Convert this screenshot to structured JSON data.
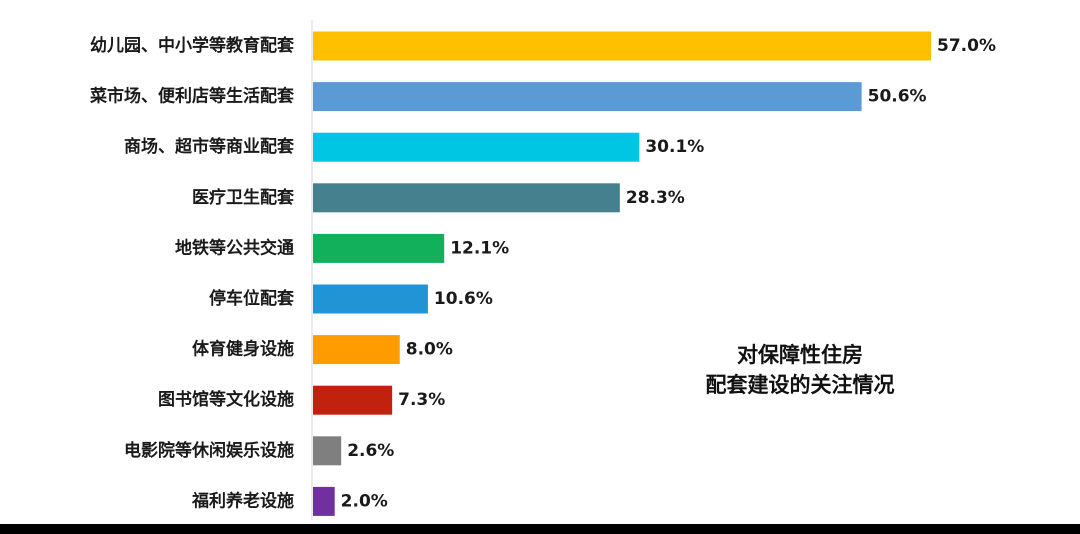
{
  "chart_data": {
    "type": "bar",
    "orientation": "horizontal",
    "title_lines": [
      "对保障性住房",
      "配套建设的关注情况"
    ],
    "categories": [
      "幼儿园、中小学等教育配套",
      "菜市场、便利店等生活配套",
      "商场、超市等商业配套",
      "医疗卫生配套",
      "地铁等公共交通",
      "停车位配套",
      "体育健身设施",
      "图书馆等文化设施",
      "电影院等休闲娱乐设施",
      "福利养老设施"
    ],
    "values": [
      57.0,
      50.6,
      30.1,
      28.3,
      12.1,
      10.6,
      8.0,
      7.3,
      2.6,
      2.0
    ],
    "value_labels": [
      "57.0%",
      "50.6%",
      "30.1%",
      "28.3%",
      "12.1%",
      "10.6%",
      "8.0%",
      "7.3%",
      "2.6%",
      "2.0%"
    ],
    "colors": [
      "#FFC000",
      "#5B9BD5",
      "#00C5E3",
      "#44808E",
      "#12B05A",
      "#2194D6",
      "#FF9C00",
      "#C0220E",
      "#7F7F7F",
      "#7030A0"
    ],
    "axis_color": "#D9D9D9",
    "xlim": [
      0,
      57.0
    ],
    "grid": false,
    "legend": "none"
  }
}
